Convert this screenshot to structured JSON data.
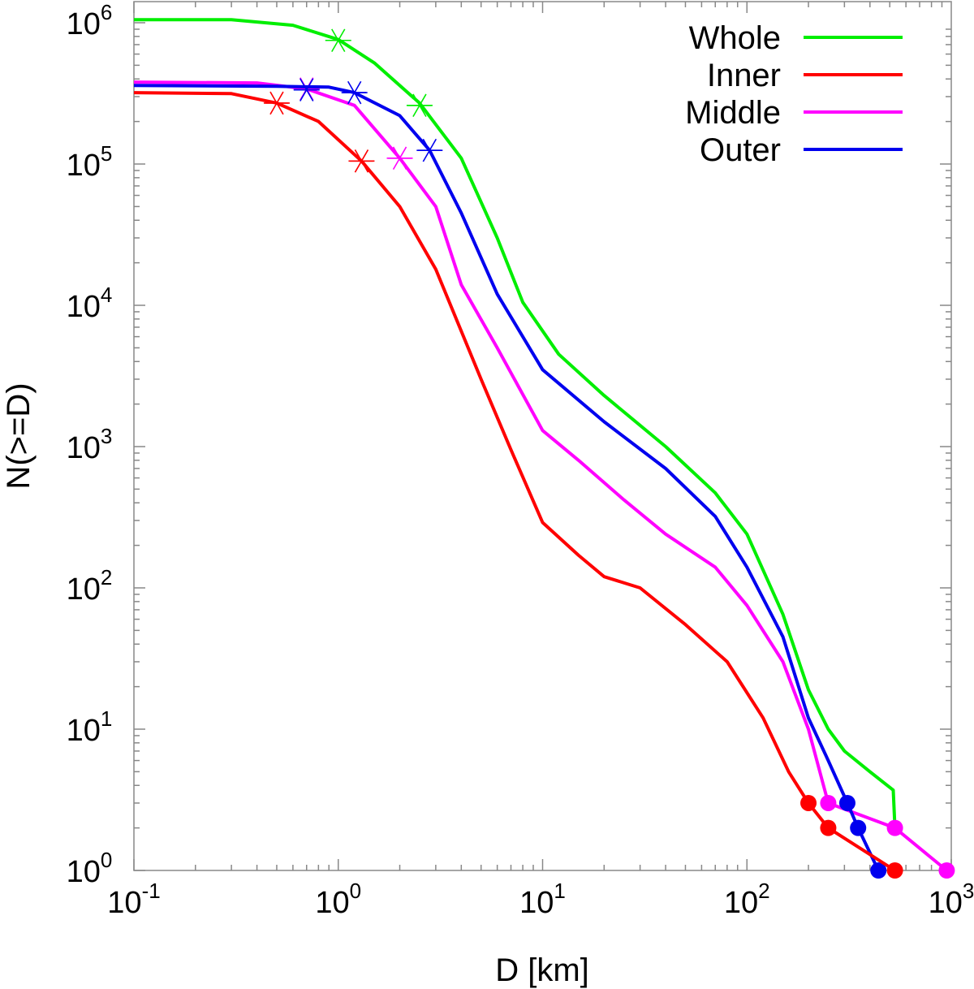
{
  "chart_data": {
    "type": "line",
    "title": "",
    "xlabel": "D [km]",
    "ylabel": "N(>=D)",
    "xscale": "log",
    "yscale": "log",
    "xlim": [
      0.1,
      1000
    ],
    "ylim": [
      1,
      1000000
    ],
    "grid": false,
    "legend_position": "top-right",
    "x_ticks": [
      {
        "base": "10",
        "exp": "-1",
        "value": 0.1
      },
      {
        "base": "10",
        "exp": "0",
        "value": 1
      },
      {
        "base": "10",
        "exp": "1",
        "value": 10
      },
      {
        "base": "10",
        "exp": "2",
        "value": 100
      },
      {
        "base": "10",
        "exp": "3",
        "value": 1000
      }
    ],
    "y_ticks": [
      {
        "base": "10",
        "exp": "0",
        "value": 1
      },
      {
        "base": "10",
        "exp": "1",
        "value": 10
      },
      {
        "base": "10",
        "exp": "2",
        "value": 100
      },
      {
        "base": "10",
        "exp": "3",
        "value": 1000
      },
      {
        "base": "10",
        "exp": "4",
        "value": 10000
      },
      {
        "base": "10",
        "exp": "5",
        "value": 100000
      },
      {
        "base": "10",
        "exp": "6",
        "value": 1000000
      }
    ],
    "series": [
      {
        "name": "Whole",
        "color": "#00ee00",
        "curve": [
          [
            0.1,
            1050000
          ],
          [
            0.3,
            1050000
          ],
          [
            0.6,
            960000
          ],
          [
            1.0,
            760000
          ],
          [
            1.5,
            520000
          ],
          [
            2.5,
            270000
          ],
          [
            4,
            110000
          ],
          [
            6,
            30000
          ],
          [
            8,
            10500
          ],
          [
            12,
            4500
          ],
          [
            20,
            2300
          ],
          [
            40,
            1000
          ],
          [
            70,
            470
          ],
          [
            100,
            240
          ],
          [
            150,
            65
          ],
          [
            200,
            19
          ],
          [
            250,
            10
          ],
          [
            300,
            7
          ],
          [
            400,
            5
          ],
          [
            520,
            3.7
          ],
          [
            530,
            2
          ]
        ],
        "asterisks": [
          [
            1.0,
            750000
          ],
          [
            2.5,
            260000
          ]
        ],
        "dots": []
      },
      {
        "name": "Inner",
        "color": "#ff0000",
        "curve": [
          [
            0.1,
            320000
          ],
          [
            0.3,
            315000
          ],
          [
            0.5,
            270000
          ],
          [
            0.8,
            200000
          ],
          [
            1.3,
            105000
          ],
          [
            2,
            50000
          ],
          [
            3,
            18000
          ],
          [
            5,
            3000
          ],
          [
            7,
            950
          ],
          [
            10,
            290
          ],
          [
            15,
            170
          ],
          [
            20,
            120
          ],
          [
            30,
            100
          ],
          [
            50,
            55
          ],
          [
            80,
            30
          ],
          [
            120,
            12
          ],
          [
            160,
            5
          ],
          [
            200,
            3
          ]
        ],
        "asterisks": [
          [
            0.5,
            270000
          ],
          [
            1.3,
            105000
          ]
        ],
        "dots": [
          [
            200,
            3
          ],
          [
            250,
            2
          ],
          [
            530,
            1
          ]
        ]
      },
      {
        "name": "Middle",
        "color": "#ff00ff",
        "curve": [
          [
            0.1,
            380000
          ],
          [
            0.4,
            375000
          ],
          [
            0.7,
            340000
          ],
          [
            1.2,
            260000
          ],
          [
            2,
            110000
          ],
          [
            3,
            50000
          ],
          [
            4,
            14000
          ],
          [
            6,
            5000
          ],
          [
            10,
            1300
          ],
          [
            15,
            800
          ],
          [
            25,
            420
          ],
          [
            40,
            240
          ],
          [
            70,
            140
          ],
          [
            100,
            75
          ],
          [
            150,
            30
          ],
          [
            200,
            10
          ],
          [
            250,
            3
          ]
        ],
        "asterisks": [
          [
            0.7,
            340000
          ],
          [
            2.0,
            110000
          ]
        ],
        "dots": [
          [
            250,
            3
          ],
          [
            530,
            2
          ],
          [
            950,
            1
          ]
        ]
      },
      {
        "name": "Outer",
        "color": "#0000ee",
        "curve": [
          [
            0.1,
            360000
          ],
          [
            0.5,
            355000
          ],
          [
            0.9,
            350000
          ],
          [
            1.2,
            320000
          ],
          [
            2,
            220000
          ],
          [
            2.8,
            125000
          ],
          [
            4,
            45000
          ],
          [
            6,
            12000
          ],
          [
            10,
            3500
          ],
          [
            20,
            1500
          ],
          [
            40,
            700
          ],
          [
            70,
            320
          ],
          [
            100,
            140
          ],
          [
            150,
            45
          ],
          [
            200,
            12
          ],
          [
            250,
            6
          ],
          [
            310,
            3
          ]
        ],
        "asterisks": [
          [
            0.7,
            335000
          ],
          [
            1.2,
            320000
          ],
          [
            2.8,
            125000
          ]
        ],
        "dots": [
          [
            310,
            3
          ],
          [
            350,
            2
          ],
          [
            440,
            1
          ]
        ]
      }
    ]
  }
}
